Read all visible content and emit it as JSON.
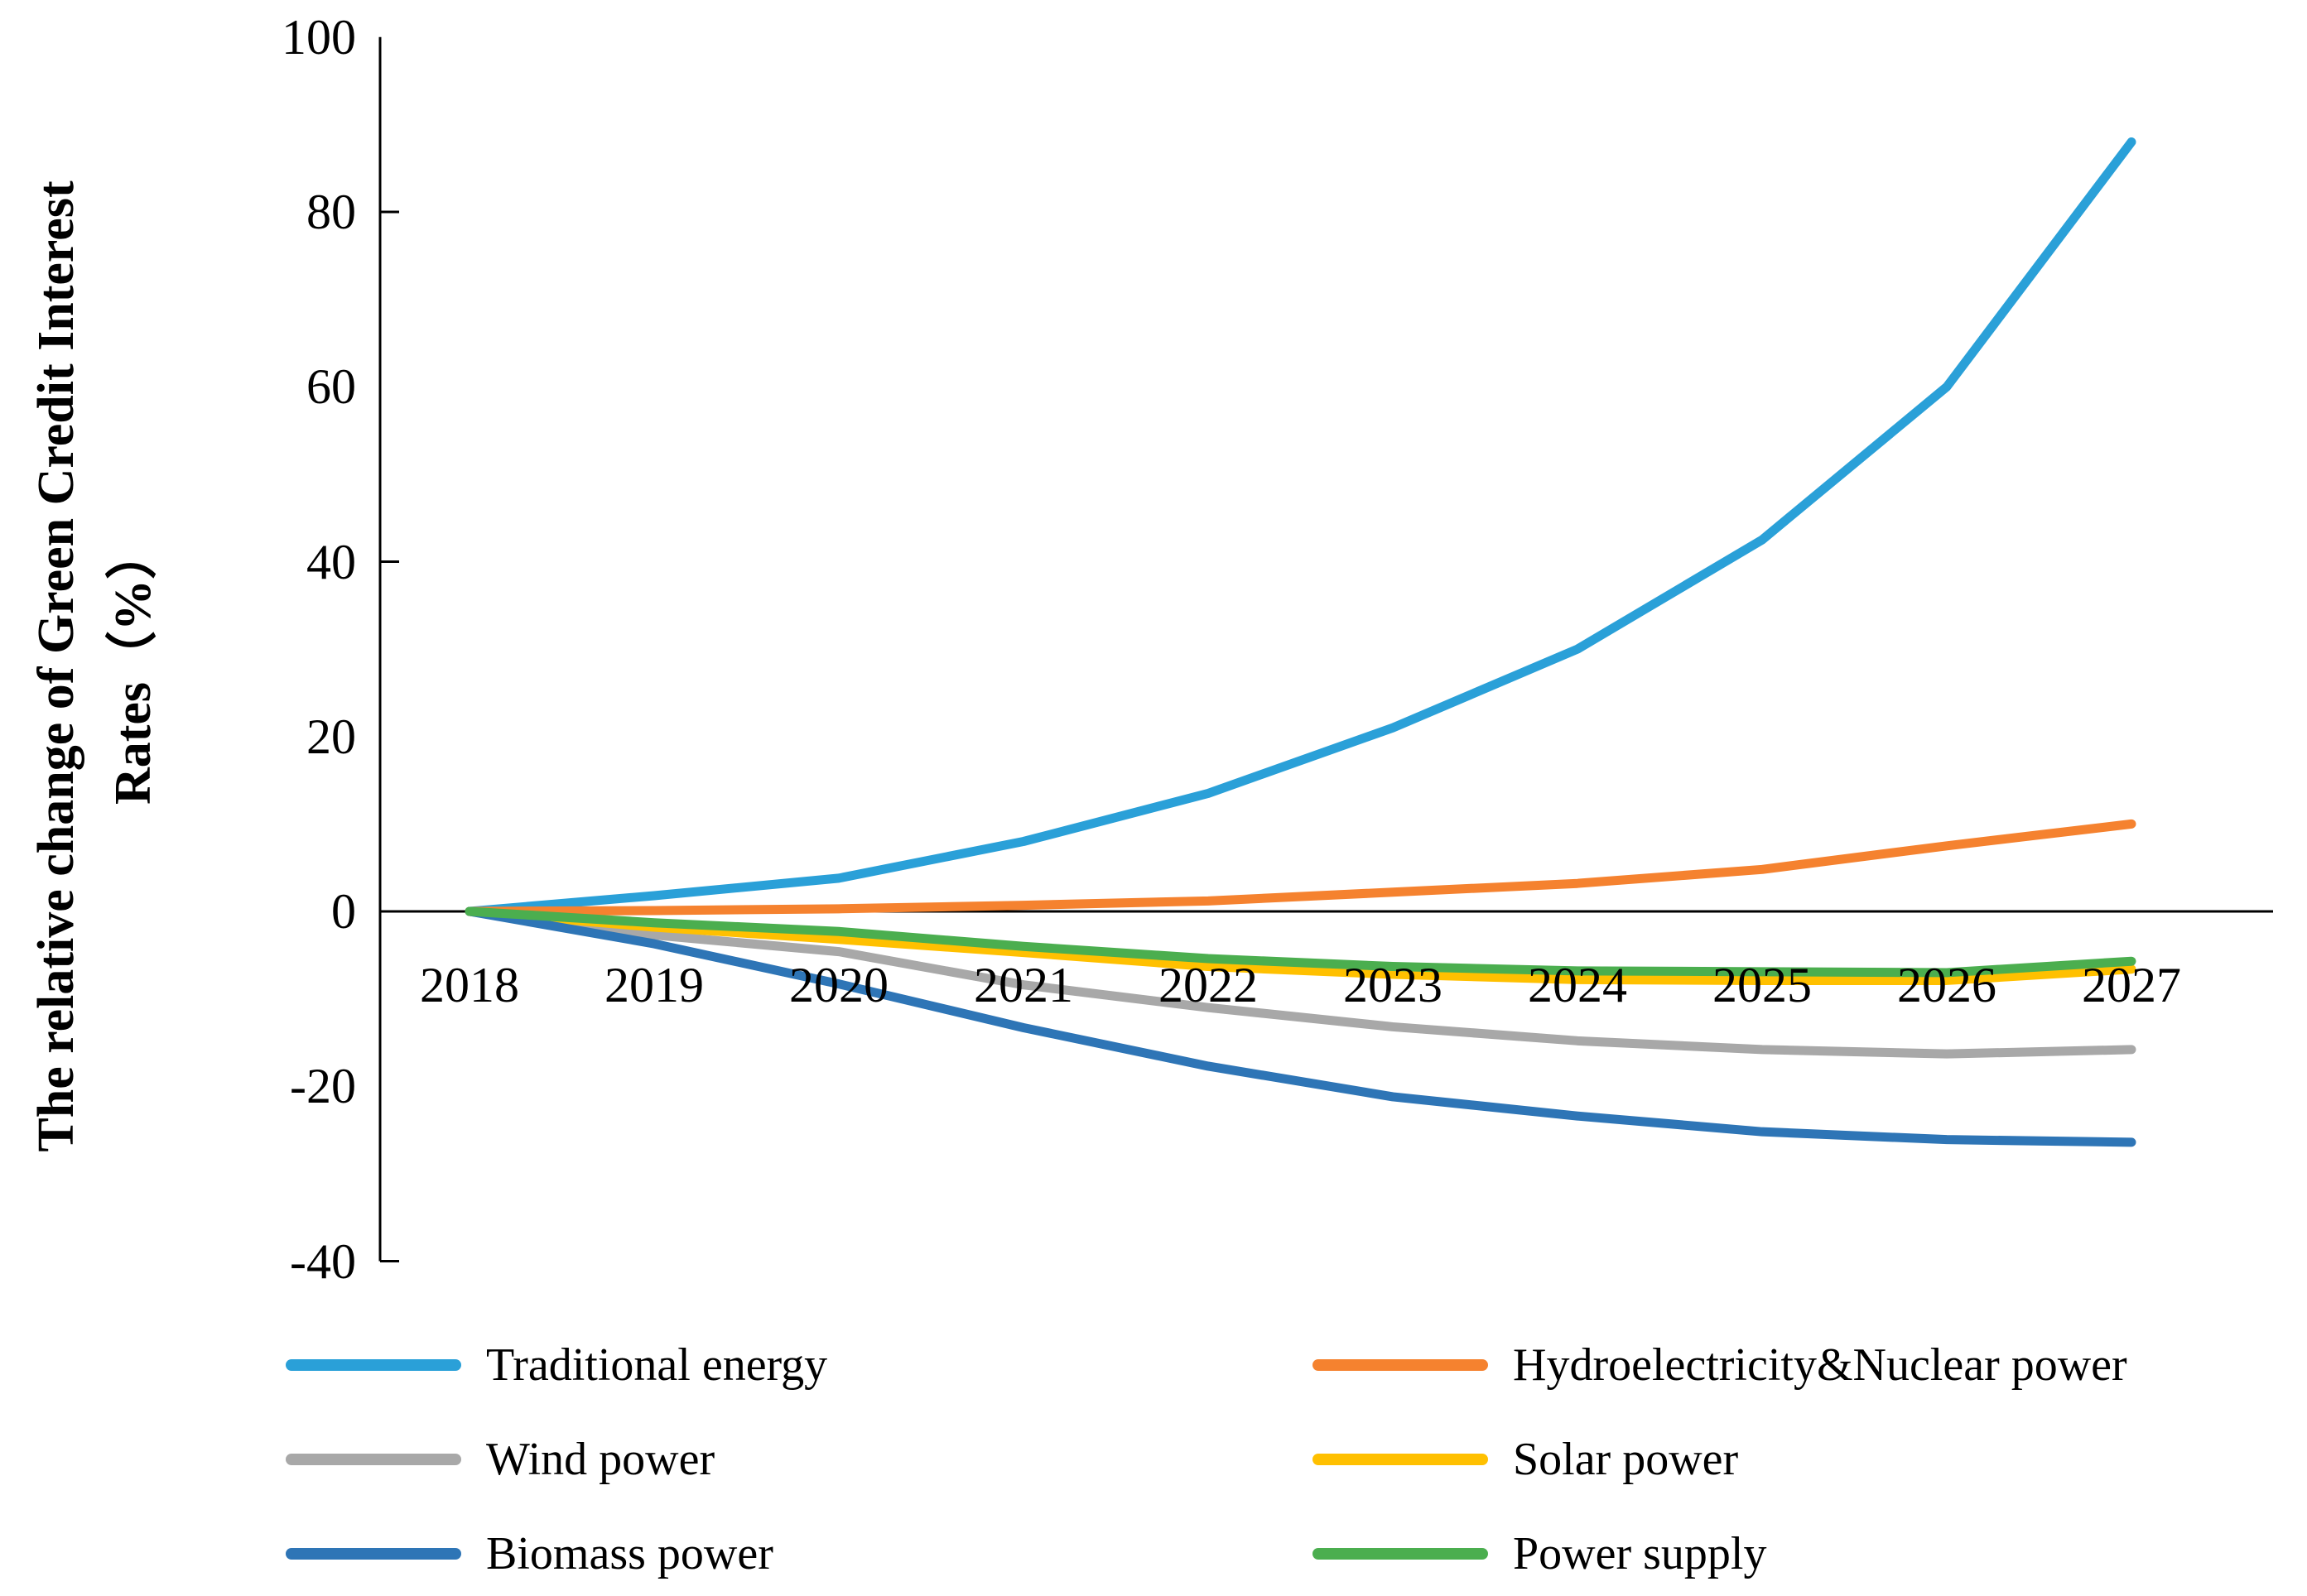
{
  "y_axis_title_line1": "The  relative change of Green Credit Interest",
  "y_axis_title_line2": "Rates（%）",
  "y_tick_labels": [
    "100",
    "80",
    "60",
    "40",
    "20",
    "0",
    "-20",
    "-40"
  ],
  "x_tick_labels": [
    "2018",
    "2019",
    "2020",
    "2021",
    "2022",
    "2023",
    "2024",
    "2025",
    "2026",
    "2027"
  ],
  "axis_color": "#000000",
  "chart_data": {
    "type": "line",
    "x": [
      2018,
      2019,
      2020,
      2021,
      2022,
      2023,
      2024,
      2025,
      2026,
      2027
    ],
    "ylim": [
      -40,
      100
    ],
    "ytick_step": 20,
    "grid": false,
    "legend_position": "bottom-two-columns",
    "ylabel": "The relative change of Green Credit Interest Rates（%）",
    "xlabel": "",
    "title": "",
    "series": [
      {
        "name": "Traditional energy",
        "color": "#2AA0D8",
        "values": [
          0,
          1.8,
          3.8,
          8.0,
          13.5,
          21.0,
          30.0,
          42.5,
          60.0,
          88.0
        ]
      },
      {
        "name": "Hydroelectricity&Nuclear power",
        "color": "#F5822F",
        "values": [
          0,
          0.1,
          0.3,
          0.7,
          1.2,
          2.2,
          3.2,
          4.8,
          7.5,
          10.0
        ]
      },
      {
        "name": "Wind power",
        "color": "#A8A8A8",
        "values": [
          0,
          -2.7,
          -4.6,
          -8.4,
          -11.0,
          -13.2,
          -14.8,
          -15.8,
          -16.3,
          -15.8
        ]
      },
      {
        "name": "Solar power",
        "color": "#FFC000",
        "values": [
          0,
          -1.8,
          -3.2,
          -4.7,
          -6.3,
          -7.2,
          -7.8,
          -7.9,
          -7.9,
          -6.6
        ]
      },
      {
        "name": "Biomass power",
        "color": "#2E75B6",
        "values": [
          0,
          -3.7,
          -8.3,
          -13.3,
          -17.7,
          -21.2,
          -23.4,
          -25.2,
          -26.1,
          -26.4
        ]
      },
      {
        "name": "Power supply",
        "color": "#4BAE4F",
        "values": [
          0,
          -1.3,
          -2.3,
          -4.0,
          -5.4,
          -6.3,
          -6.8,
          -6.9,
          -7.0,
          -5.7
        ]
      }
    ],
    "legend_column_order": [
      "Traditional energy",
      "Wind power",
      "Biomass power",
      "Hydroelectricity&Nuclear power",
      "Solar power",
      "Power supply"
    ]
  }
}
